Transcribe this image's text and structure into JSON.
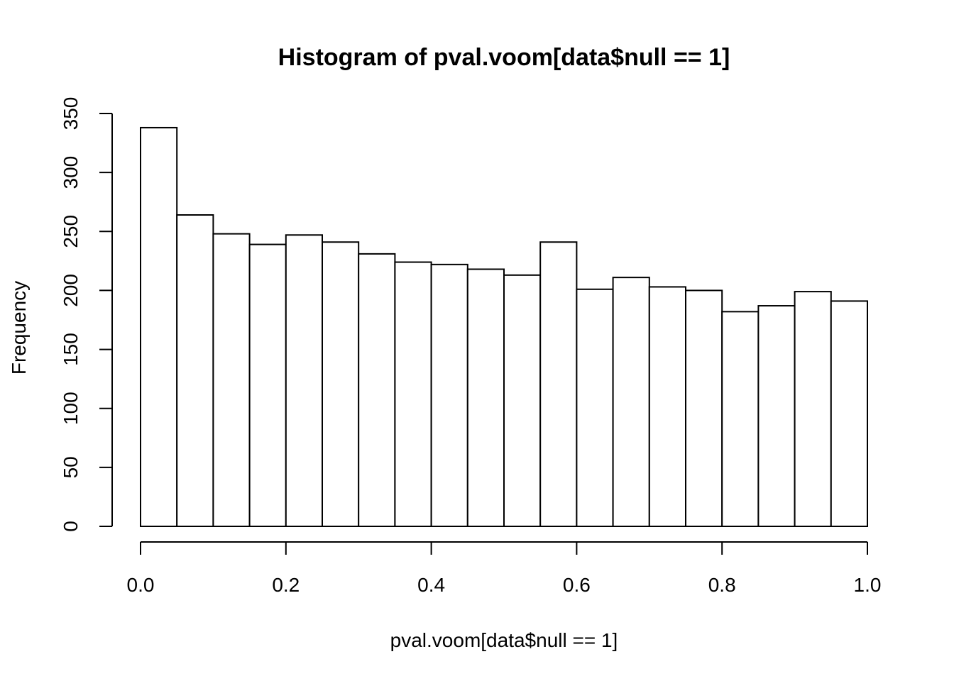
{
  "chart_data": {
    "type": "bar",
    "title": "Histogram of pval.voom[data$null == 1]",
    "xlabel": "pval.voom[data$null == 1]",
    "ylabel": "Frequency",
    "bin_edges": [
      0.0,
      0.05,
      0.1,
      0.15,
      0.2,
      0.25,
      0.3,
      0.35,
      0.4,
      0.45,
      0.5,
      0.55,
      0.6,
      0.65,
      0.7,
      0.75,
      0.8,
      0.85,
      0.9,
      0.95,
      1.0
    ],
    "values": [
      338,
      264,
      248,
      239,
      247,
      241,
      231,
      224,
      222,
      218,
      213,
      241,
      201,
      211,
      203,
      200,
      182,
      187,
      199,
      191
    ],
    "xlim": [
      0.0,
      1.0
    ],
    "ylim": [
      0,
      350
    ],
    "x_ticks": [
      "0.0",
      "0.2",
      "0.4",
      "0.6",
      "0.8",
      "1.0"
    ],
    "y_ticks": [
      "0",
      "50",
      "100",
      "150",
      "200",
      "250",
      "300",
      "350"
    ],
    "grid": false,
    "bar_fill": "#ffffff",
    "bar_stroke": "#000000"
  }
}
